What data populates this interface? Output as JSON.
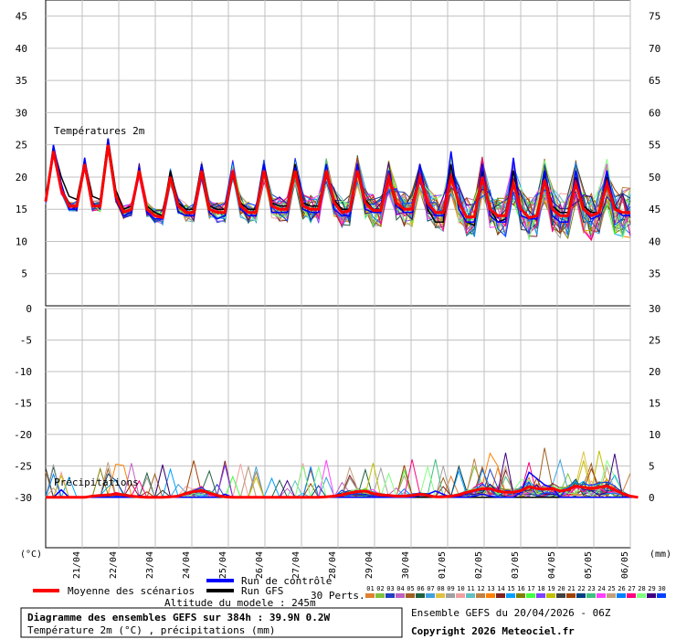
{
  "chart_data": {
    "type": "line",
    "units_left": "(°C)",
    "units_right": "(mm)",
    "panels": {
      "temperature": {
        "label": "Températures 2m",
        "left_ticks": [
          45,
          40,
          35,
          30,
          25,
          20,
          15,
          10,
          5
        ],
        "right_ticks": [
          75,
          70,
          65,
          60,
          55,
          50,
          45,
          40,
          35
        ],
        "ylim": [
          0,
          47.5
        ]
      },
      "precipitation": {
        "label": "Précipitations",
        "left_ticks": [
          0,
          -5,
          -10,
          -15,
          -20,
          -25,
          -30
        ],
        "right_ticks": [
          30,
          25,
          20,
          15,
          10,
          5,
          0
        ],
        "ylim": [
          -38,
          0
        ]
      }
    },
    "dates": [
      "21/04",
      "22/04",
      "23/04",
      "24/04",
      "25/04",
      "26/04",
      "27/04",
      "28/04",
      "29/04",
      "30/04",
      "01/05",
      "02/05",
      "03/05",
      "04/05",
      "05/05",
      "06/05"
    ],
    "series": [
      {
        "name": "Moyenne des scénarios",
        "color": "#ff0000",
        "temperature": [
          16.2,
          24,
          18,
          15.5,
          15.5,
          22,
          15.5,
          15.5,
          25,
          17,
          14.5,
          15,
          21,
          15,
          14,
          13.7,
          20,
          15.5,
          14.5,
          14.5,
          21,
          15,
          14.5,
          14.5,
          21,
          15.5,
          14.5,
          14.5,
          21,
          15.5,
          15,
          15,
          21,
          15.5,
          15,
          15,
          21,
          16,
          14.5,
          14.8,
          21,
          16,
          14.8,
          14.8,
          20,
          16,
          15,
          15,
          20,
          16,
          14.5,
          14.5,
          20,
          16,
          13.8,
          13.8,
          20,
          15,
          14,
          14,
          19,
          15,
          13.7,
          14,
          19.5,
          15,
          14,
          14,
          19,
          15,
          14,
          14.5,
          19,
          15,
          14.5,
          14.5
        ],
        "precip": [
          0,
          0,
          0,
          0,
          0,
          0,
          0.2,
          0.3,
          0.4,
          0.5,
          0.4,
          0.2,
          0.1,
          0,
          0,
          0,
          0.1,
          0.2,
          0.6,
          0.9,
          1.1,
          0.7,
          0.3,
          0.1,
          0,
          0,
          0,
          0,
          0,
          0,
          0,
          0,
          0,
          0,
          0,
          0,
          0.1,
          0.2,
          0.4,
          0.7,
          0.9,
          1.0,
          0.6,
          0.4,
          0.3,
          0.2,
          0.2,
          0.3,
          0.5,
          0.3,
          0.1,
          0.1,
          0.2,
          0.4,
          0.8,
          1.1,
          1.4,
          1.4,
          1.0,
          0.8,
          0.8,
          1.1,
          1.7,
          1.4,
          1.3,
          1.4,
          1.0,
          1.2,
          1.8,
          1.6,
          1.4,
          1.6,
          1.8,
          1.2,
          0.6,
          0.2,
          0
        ]
      },
      {
        "name": "Run de contrôle",
        "color": "#0000ff",
        "temperature": [
          16.2,
          25,
          19,
          15,
          15,
          23,
          15.8,
          15.5,
          26,
          16.5,
          14,
          14.5,
          21.5,
          14.5,
          13.5,
          13.5,
          20,
          14.5,
          14,
          14,
          22,
          14.5,
          13.5,
          14,
          21,
          15,
          14,
          14,
          22,
          14.5,
          14.5,
          14.5,
          21.5,
          15,
          14.5,
          14.5,
          22,
          15,
          14,
          14,
          22,
          15,
          14.5,
          14.5,
          21,
          15.5,
          14.5,
          14.5,
          22,
          15.5,
          14,
          14,
          24,
          15,
          13,
          13,
          22,
          14,
          13,
          13,
          23,
          14,
          13.5,
          13.5,
          21,
          14,
          13,
          13,
          21,
          15,
          13.5,
          14,
          21,
          15,
          14,
          14
        ],
        "precip": [
          0,
          0,
          1.2,
          0,
          0,
          0,
          0,
          0,
          0,
          0,
          0,
          0,
          0.3,
          0,
          0,
          0,
          0,
          0,
          0,
          0,
          0,
          0,
          0,
          0.5,
          0,
          0,
          0,
          0,
          0,
          0,
          0,
          0,
          0,
          0,
          0,
          0,
          0,
          0,
          0,
          0,
          0,
          0,
          0,
          0,
          0,
          0,
          0,
          0,
          0.3,
          0.5,
          1.0,
          0.5,
          0,
          0,
          0,
          0.2,
          0.5,
          0.2,
          0,
          0,
          0,
          0.8,
          4.0,
          3.0,
          2.0,
          1.5,
          0,
          0,
          0,
          0,
          0,
          0,
          0,
          0,
          0,
          0,
          0
        ]
      },
      {
        "name": "Run GFS",
        "color": "#000000",
        "temperature": [
          16.2,
          24.5,
          20,
          17,
          16.5,
          22.5,
          17,
          16.5,
          26,
          18,
          15,
          15.5,
          21,
          15.5,
          14.5,
          14,
          21,
          16,
          15,
          15,
          22,
          15.5,
          15,
          15,
          21,
          16,
          15,
          15,
          22,
          16,
          15.5,
          15.5,
          22,
          16,
          15.5,
          15.5,
          21,
          16.5,
          15,
          15,
          21,
          16.5,
          15,
          15,
          20,
          16,
          14.5,
          14.5,
          22,
          15,
          13,
          13,
          22,
          15,
          13,
          12.5,
          21,
          15,
          13,
          13.5,
          21,
          15,
          13.5,
          14,
          20.5,
          15.5,
          14.5,
          14.5,
          20,
          15.5,
          14.5,
          14.5,
          20,
          15.5,
          14,
          14
        ],
        "precip": [
          0,
          0,
          0,
          0,
          0,
          0,
          0,
          0,
          0,
          0,
          0,
          0,
          0,
          0,
          0,
          0,
          0,
          0,
          0,
          0,
          0,
          0,
          0,
          0,
          0,
          0,
          0,
          0,
          0,
          0,
          0,
          0,
          0,
          0,
          0,
          0,
          0,
          0,
          0,
          0,
          0,
          0,
          0,
          0,
          0,
          0,
          0,
          0,
          0,
          0,
          0,
          0,
          0,
          0,
          0,
          0,
          0,
          0,
          0,
          0,
          0,
          0,
          0,
          0,
          0,
          0,
          0,
          0,
          0,
          0,
          0,
          0,
          0,
          0,
          0,
          0,
          0
        ]
      }
    ],
    "perturbations": {
      "count": 30,
      "label": "30 Perts.",
      "codes": [
        "01",
        "02",
        "03",
        "04",
        "05",
        "06",
        "07",
        "08",
        "09",
        "10",
        "11",
        "12",
        "13",
        "14",
        "15",
        "16",
        "17",
        "18",
        "19",
        "20",
        "21",
        "22",
        "23",
        "24",
        "25",
        "26",
        "27",
        "28",
        "29",
        "30"
      ],
      "colors": [
        "#e08030",
        "#80c040",
        "#2040c0",
        "#c060c0",
        "#a06020",
        "#206040",
        "#40a0e0",
        "#e0c040",
        "#a0a0a0",
        "#f0a0a0",
        "#60c0c0",
        "#c08040",
        "#ff8000",
        "#802020",
        "#00a0ff",
        "#808000",
        "#40ff40",
        "#8040ff",
        "#c0c000",
        "#404040",
        "#a04000",
        "#004080",
        "#40c080",
        "#ff40ff",
        "#c0a080",
        "#0080ff",
        "#ff0080",
        "#80ff80",
        "#400080",
        "#0040ff"
      ]
    }
  },
  "legend": {
    "mean_label": "Moyenne des scénarios",
    "control_label": "Run de contrôle",
    "gfs_label": "Run GFS",
    "altitude": "Altitude du modele : 245m"
  },
  "footer": {
    "title": "Diagramme des ensembles GEFS sur 384h : 39.9N 0.2W",
    "subtitle": "Température 2m (°C) , précipitations (mm)",
    "run": "Ensemble GEFS du 20/04/2026 - 06Z",
    "copyright": "Copyright 2026 Meteociel.fr"
  }
}
